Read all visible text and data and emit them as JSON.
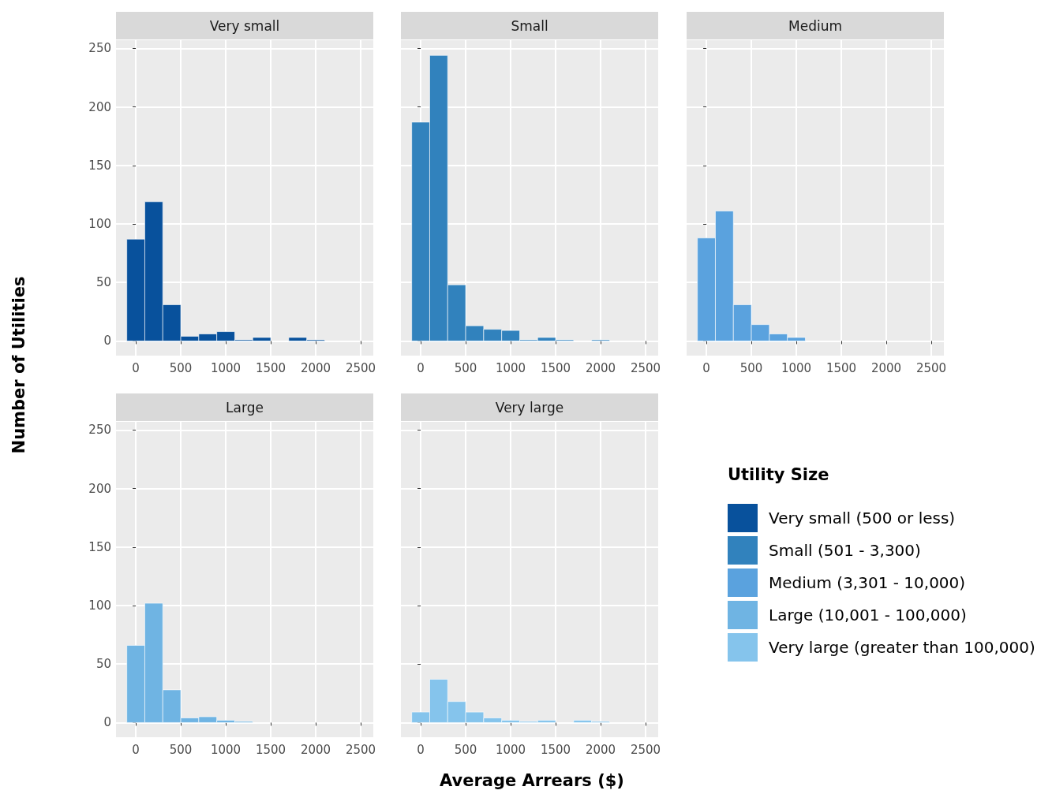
{
  "chart_data": [
    {
      "type": "histogram",
      "title": "Very small",
      "xlabel": "Average Arrears ($)",
      "ylabel": "Number of Utilities",
      "legend_title": "Utility Size",
      "legend": "right",
      "grid": true,
      "bins": [
        -100,
        100,
        300,
        500,
        700,
        900,
        1100,
        1300,
        1500,
        1700,
        1900,
        2100,
        2300,
        2500
      ],
      "series": [
        {
          "name": "Very small (500 or less)",
          "color": "#08519c",
          "values": [
            87,
            119,
            31,
            4,
            6,
            8,
            1,
            3,
            0,
            3,
            1,
            0,
            0
          ]
        }
      ],
      "xlim": [
        -220,
        2640
      ],
      "xticks": [
        0,
        500,
        1000,
        1500,
        2000,
        2500
      ],
      "ylim": [
        -12.5,
        257
      ],
      "yticks": [
        0,
        50,
        100,
        150,
        200,
        250
      ]
    },
    {
      "type": "histogram",
      "title": "Small",
      "legend": "right",
      "grid": true,
      "tick_labels": "x",
      "bins": [
        -100,
        100,
        300,
        500,
        700,
        900,
        1100,
        1300,
        1500,
        1700,
        1900,
        2100,
        2300,
        2500
      ],
      "series": [
        {
          "name": "Small (501 - 3,300)",
          "color": "#3182bd",
          "values": [
            187,
            244,
            48,
            13,
            10,
            9,
            1,
            3,
            1,
            0,
            1,
            0,
            0
          ]
        }
      ],
      "xlim": [
        -220,
        2640
      ],
      "xticks": [
        0,
        500,
        1000,
        1500,
        2000,
        2500
      ],
      "ylim": [
        -12.5,
        257
      ],
      "yticks": [
        0,
        50,
        100,
        150,
        200,
        250
      ]
    },
    {
      "type": "histogram",
      "title": "Medium",
      "legend": "right",
      "grid": true,
      "tick_labels": "x",
      "bins": [
        -100,
        100,
        300,
        500,
        700,
        900,
        1100,
        1300,
        1500,
        1700,
        1900,
        2100,
        2300,
        2500
      ],
      "series": [
        {
          "name": "Medium (3,301 - 10,000)",
          "color": "#5aa2de",
          "values": [
            88,
            111,
            31,
            14,
            6,
            3,
            0,
            0,
            0,
            0,
            0,
            0,
            0
          ]
        }
      ],
      "xlim": [
        -220,
        2640
      ],
      "xticks": [
        0,
        500,
        1000,
        1500,
        2000,
        2500
      ],
      "ylim": [
        -12.5,
        257
      ],
      "yticks": [
        0,
        50,
        100,
        150,
        200,
        250
      ]
    },
    {
      "type": "histogram",
      "title": "Large",
      "legend": "right",
      "grid": true,
      "bins": [
        -100,
        100,
        300,
        500,
        700,
        900,
        1100,
        1300,
        1500,
        1700,
        1900,
        2100,
        2300,
        2500
      ],
      "series": [
        {
          "name": "Large (10,001 - 100,000)",
          "color": "#6fb4e3",
          "values": [
            66,
            102,
            28,
            4,
            5,
            2,
            1,
            0,
            0,
            0,
            0,
            0,
            0
          ]
        }
      ],
      "xlim": [
        -220,
        2640
      ],
      "xticks": [
        0,
        500,
        1000,
        1500,
        2000,
        2500
      ],
      "ylim": [
        -12.5,
        257
      ],
      "yticks": [
        0,
        50,
        100,
        150,
        200,
        250
      ]
    },
    {
      "type": "histogram",
      "title": "Very large",
      "legend": "right",
      "grid": true,
      "tick_labels": "x",
      "bins": [
        -100,
        100,
        300,
        500,
        700,
        900,
        1100,
        1300,
        1500,
        1700,
        1900,
        2100,
        2300,
        2500
      ],
      "series": [
        {
          "name": "Very large (greater than 100,000)",
          "color": "#85c4ec",
          "values": [
            9,
            37,
            18,
            9,
            4,
            2,
            1,
            2,
            0,
            2,
            1,
            0,
            0
          ]
        }
      ],
      "xlim": [
        -220,
        2640
      ],
      "xticks": [
        0,
        500,
        1000,
        1500,
        2000,
        2500
      ],
      "ylim": [
        -12.5,
        257
      ],
      "yticks": [
        0,
        50,
        100,
        150,
        200,
        250
      ]
    }
  ]
}
